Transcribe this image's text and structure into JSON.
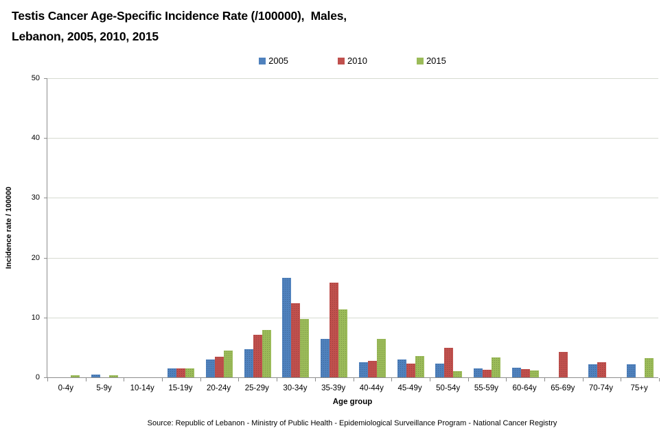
{
  "title": {
    "line1": "Testis Cancer Age-Specific Incidence Rate (/100000),  Males,",
    "line2": "Lebanon, 2005, 2010, 2015"
  },
  "source": "Source: Republic of Lebanon - Ministry of Public Health - Epidemiological Surveillance Program - National Cancer Registry",
  "colors": {
    "series_2005": "#4F81BD",
    "series_2010": "#C0504D",
    "series_2015": "#9BBB59",
    "gridline": "#D6DAD0",
    "axis": "#8C8C8C"
  },
  "chart_data": {
    "type": "bar",
    "title": "Testis Cancer Age-Specific Incidence Rate (/100000), Males, Lebanon, 2005, 2010, 2015",
    "categories": [
      "0-4y",
      "5-9y",
      "10-14y",
      "15-19y",
      "20-24y",
      "25-29y",
      "30-34y",
      "35-39y",
      "40-44y",
      "45-49y",
      "50-54y",
      "55-59y",
      "60-64y",
      "65-69y",
      "70-74y",
      "75+y"
    ],
    "series": [
      {
        "name": "2005",
        "color": "#4F81BD",
        "values": [
          0,
          0.5,
          0,
          1.5,
          3.0,
          4.7,
          16.6,
          6.4,
          2.5,
          3.0,
          2.3,
          1.5,
          1.6,
          0,
          2.2,
          2.2
        ]
      },
      {
        "name": "2010",
        "color": "#C0504D",
        "values": [
          0,
          0,
          0,
          1.5,
          3.4,
          7.1,
          12.4,
          15.8,
          2.8,
          2.3,
          4.9,
          1.3,
          1.4,
          4.3,
          2.5,
          0
        ]
      },
      {
        "name": "2015",
        "color": "#9BBB59",
        "values": [
          0.3,
          0.3,
          0,
          1.5,
          4.5,
          7.9,
          9.7,
          11.3,
          6.4,
          3.5,
          1.0,
          3.3,
          1.2,
          0,
          0,
          3.2
        ]
      }
    ],
    "xlabel": "Age group",
    "ylabel": "Incidence rate / 100000",
    "ylim": [
      0,
      50
    ],
    "yticks": [
      0,
      10,
      20,
      30,
      40,
      50
    ],
    "legend_position": "top",
    "grid": true
  }
}
